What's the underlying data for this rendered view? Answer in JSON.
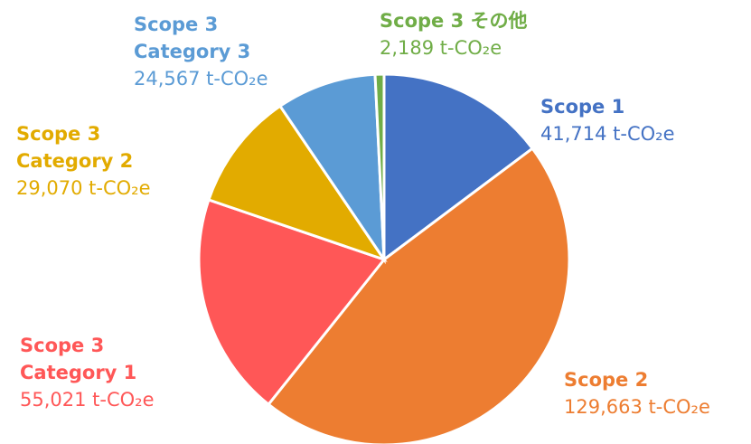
{
  "chart_data": {
    "type": "pie",
    "categories": [
      "Scope 1",
      "Scope 2",
      "Scope 3 Category 1",
      "Scope 3 Category 2",
      "Scope 3 Category 3",
      "Scope 3 その他"
    ],
    "values": [
      41714,
      129663,
      55021,
      29070,
      24567,
      2189
    ],
    "value_labels": [
      "41,714 t-CO₂e",
      "129,663 t-CO₂e",
      "55,021 t-CO₂e",
      "29,070 t-CO₂e",
      "24,567 t-CO₂e",
      "2,189 t-CO₂e"
    ],
    "colors": [
      "#4472c4",
      "#ed7d31",
      "#ff5757",
      "#e2ab00",
      "#5b9bd5",
      "#70ad47"
    ]
  }
}
